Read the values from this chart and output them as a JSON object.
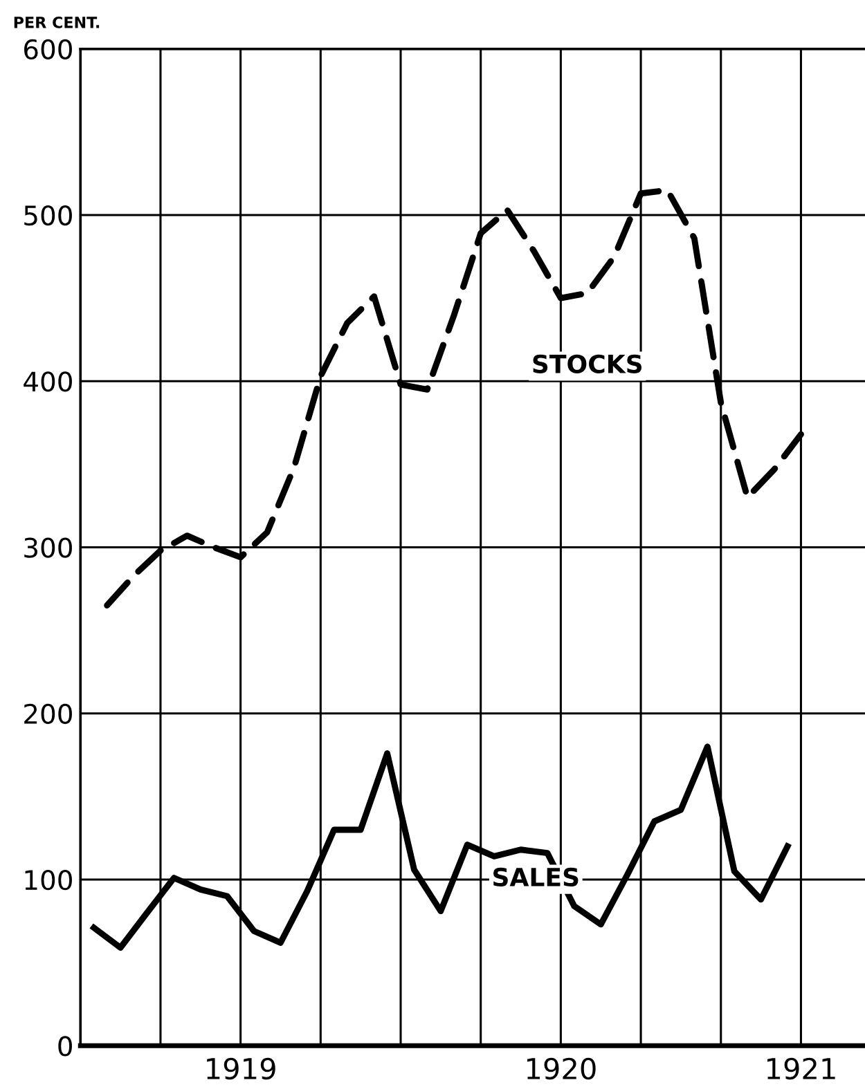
{
  "chart_data": {
    "type": "line",
    "ylabel": "PER CENT.",
    "xlim": [
      1919,
      1921.45
    ],
    "ylim": [
      0,
      600
    ],
    "xticks": [
      {
        "value": 1919.25,
        "label": null
      },
      {
        "value": 1919.5,
        "label": "1919"
      },
      {
        "value": 1919.75,
        "label": null
      },
      {
        "value": 1920,
        "label": null
      },
      {
        "value": 1920.25,
        "label": null
      },
      {
        "value": 1920.5,
        "label": "1920"
      },
      {
        "value": 1920.75,
        "label": null
      },
      {
        "value": 1921,
        "label": null
      },
      {
        "value": 1921.25,
        "label": "1921"
      }
    ],
    "yticks": [
      0,
      100,
      200,
      300,
      400,
      500,
      600
    ],
    "grid": true,
    "marker": "none",
    "legend": false,
    "series": [
      {
        "name": "STOCKS",
        "color": "#000000",
        "line_style": "dashed",
        "x": [
          1919.083,
          1919.167,
          1919.25,
          1919.333,
          1919.417,
          1919.5,
          1919.583,
          1919.667,
          1919.75,
          1919.833,
          1919.917,
          1920.0,
          1920.083,
          1920.167,
          1920.25,
          1920.333,
          1920.417,
          1920.5,
          1920.583,
          1920.667,
          1920.75,
          1920.833,
          1920.917,
          1921.0,
          1921.083,
          1921.167,
          1921.25
        ],
        "values": [
          265,
          283,
          298,
          307,
          300,
          294,
          309,
          348,
          403,
          435,
          451,
          398,
          395,
          440,
          489,
          503,
          478,
          450,
          453,
          475,
          513,
          515,
          486,
          387,
          330,
          347,
          368
        ]
      },
      {
        "name": "SALES",
        "color": "#000000",
        "line_style": "solid",
        "x": [
          1919.042,
          1919.125,
          1919.208,
          1919.292,
          1919.375,
          1919.458,
          1919.542,
          1919.625,
          1919.708,
          1919.792,
          1919.875,
          1919.958,
          1920.042,
          1920.125,
          1920.208,
          1920.292,
          1920.375,
          1920.458,
          1920.542,
          1920.625,
          1920.708,
          1920.792,
          1920.875,
          1920.958,
          1921.042,
          1921.125,
          1921.208
        ],
        "values": [
          71,
          59,
          80,
          101,
          94,
          90,
          69,
          62,
          93,
          130,
          130,
          176,
          106,
          81,
          121,
          114,
          118,
          116,
          84,
          73,
          103,
          135,
          142,
          180,
          105,
          88,
          120
        ]
      }
    ]
  }
}
